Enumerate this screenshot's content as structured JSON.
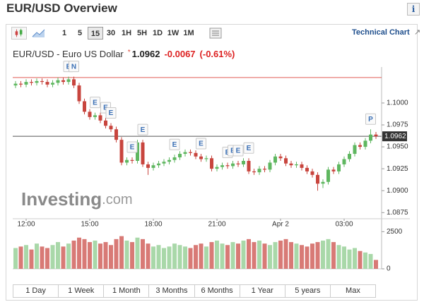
{
  "header": {
    "title": "EUR/USD Overview"
  },
  "toolbar": {
    "intervals": [
      {
        "label": "1",
        "active": false
      },
      {
        "label": "5",
        "active": false
      },
      {
        "label": "15",
        "active": true
      },
      {
        "label": "30",
        "active": false
      },
      {
        "label": "1H",
        "active": false
      },
      {
        "label": "5H",
        "active": false
      },
      {
        "label": "1D",
        "active": false
      },
      {
        "label": "1W",
        "active": false
      },
      {
        "label": "1M",
        "active": false
      }
    ],
    "link": "Technical Chart"
  },
  "quote": {
    "name": "EUR/USD - Euro US Dollar",
    "marker": "*",
    "change": "-0.0067",
    "change_pct": "(-0.61%)"
  },
  "watermark": {
    "brand": "Investing",
    "suffix": ".com"
  },
  "chart_data": {
    "type": "candlestick",
    "categories": [
      null,
      null,
      "12:00",
      null,
      null,
      null,
      null,
      null,
      null,
      null,
      null,
      null,
      null,
      null,
      "15:00",
      null,
      null,
      null,
      null,
      null,
      null,
      null,
      null,
      null,
      null,
      null,
      "18:00",
      null,
      null,
      null,
      null,
      null,
      null,
      null,
      null,
      null,
      null,
      null,
      "21:00",
      null,
      null,
      null,
      null,
      null,
      null,
      null,
      null,
      null,
      null,
      null,
      "Apr 2",
      null,
      null,
      null,
      null,
      null,
      null,
      null,
      null,
      null,
      null,
      null,
      "03:00",
      null,
      null,
      null,
      null,
      null,
      null
    ],
    "open": [
      1.102,
      1.1022,
      1.1021,
      1.1024,
      1.1023,
      1.1025,
      1.1024,
      1.1021,
      1.1023,
      1.1026,
      1.1024,
      1.1027,
      1.102,
      1.1002,
      1.099,
      1.0984,
      1.0986,
      1.098,
      1.0974,
      1.097,
      1.0958,
      1.0932,
      1.0935,
      1.0934,
      1.0955,
      1.093,
      1.0926,
      1.0929,
      1.0931,
      1.0933,
      1.0935,
      1.0938,
      1.0942,
      1.0944,
      1.0943,
      1.0939,
      1.0936,
      1.0937,
      1.0925,
      1.0927,
      1.0929,
      1.0928,
      1.0931,
      1.093,
      1.0934,
      1.0922,
      1.0921,
      1.0925,
      1.0924,
      1.0932,
      1.0939,
      1.0937,
      1.0931,
      1.0929,
      1.093,
      1.0926,
      1.0922,
      1.0918,
      1.0908,
      1.091,
      1.0924,
      1.0922,
      1.093,
      1.0936,
      1.0942,
      1.0952,
      1.095,
      1.0957,
      1.0964
    ],
    "high": [
      1.1025,
      1.1025,
      1.1027,
      1.1027,
      1.1028,
      1.1028,
      1.1027,
      1.1026,
      1.1029,
      1.1029,
      1.103,
      1.103,
      1.1023,
      1.1005,
      1.0993,
      1.0989,
      1.0989,
      1.0983,
      1.0977,
      1.0973,
      1.0961,
      1.0938,
      1.0938,
      1.0958,
      1.0958,
      1.0933,
      1.0932,
      1.0934,
      1.0936,
      1.0938,
      1.0941,
      1.0945,
      1.0947,
      1.0947,
      1.0946,
      1.0942,
      1.094,
      1.094,
      1.093,
      1.0932,
      1.0932,
      1.0934,
      1.0934,
      1.0937,
      1.0937,
      1.0925,
      1.0928,
      1.0928,
      1.0935,
      1.0942,
      1.0942,
      1.094,
      1.0934,
      1.0933,
      1.0933,
      1.0929,
      1.0925,
      1.0921,
      1.0913,
      1.0927,
      1.0927,
      1.0933,
      1.0939,
      1.0945,
      1.0955,
      1.0955,
      1.096,
      1.097,
      1.0967
    ],
    "low": [
      1.1017,
      1.1018,
      1.1018,
      1.102,
      1.102,
      1.1021,
      1.1018,
      1.1018,
      1.102,
      1.1021,
      1.1021,
      1.1017,
      1.0999,
      1.0987,
      1.0981,
      1.0981,
      1.0977,
      1.0971,
      1.0967,
      1.0955,
      1.0929,
      1.0929,
      1.0931,
      1.0931,
      1.0927,
      1.0918,
      1.0923,
      1.0926,
      1.0928,
      1.093,
      1.0932,
      1.0935,
      1.0939,
      1.094,
      1.0936,
      1.0933,
      1.0933,
      1.0922,
      1.0922,
      1.0924,
      1.0925,
      1.0925,
      1.0927,
      1.0927,
      1.0919,
      1.0918,
      1.0918,
      1.0921,
      1.0921,
      1.0929,
      1.0934,
      1.0928,
      1.0926,
      1.0926,
      1.0923,
      1.0919,
      1.0915,
      1.09,
      1.0903,
      1.0907,
      1.0919,
      1.0919,
      1.0927,
      1.0933,
      1.0939,
      1.0947,
      1.0947,
      1.0954,
      1.0959
    ],
    "close": [
      1.1022,
      1.1021,
      1.1024,
      1.1023,
      1.1025,
      1.1024,
      1.1021,
      1.1023,
      1.1026,
      1.1024,
      1.1027,
      1.102,
      1.1002,
      1.099,
      1.0984,
      1.0986,
      1.098,
      1.0974,
      1.097,
      1.0958,
      1.0932,
      1.0935,
      1.0934,
      1.0955,
      1.093,
      1.0926,
      1.0929,
      1.0931,
      1.0933,
      1.0935,
      1.0938,
      1.0942,
      1.0944,
      1.0943,
      1.0939,
      1.0936,
      1.0937,
      1.0925,
      1.0927,
      1.0929,
      1.0928,
      1.0931,
      1.093,
      1.0934,
      1.0922,
      1.0921,
      1.0925,
      1.0924,
      1.0932,
      1.0939,
      1.0937,
      1.0931,
      1.0929,
      1.093,
      1.0926,
      1.0922,
      1.0918,
      1.0908,
      1.091,
      1.0924,
      1.0922,
      1.093,
      1.0936,
      1.0942,
      1.0952,
      1.095,
      1.0957,
      1.0964,
      1.0962
    ],
    "volume": [
      1400,
      1500,
      1600,
      1300,
      1700,
      1500,
      1400,
      1600,
      1800,
      1500,
      1700,
      1900,
      2100,
      2000,
      1800,
      1900,
      1700,
      1800,
      1600,
      2000,
      2200,
      1900,
      1800,
      2100,
      2000,
      1700,
      1500,
      1600,
      1400,
      1500,
      1700,
      1600,
      1500,
      1400,
      1600,
      1700,
      1500,
      1800,
      1900,
      1700,
      1600,
      1800,
      1700,
      1900,
      2000,
      1800,
      1900,
      1700,
      1600,
      1800,
      1900,
      2000,
      1800,
      1700,
      1600,
      1500,
      1700,
      1800,
      1900,
      2000,
      1800,
      1600,
      1500,
      1300,
      1400,
      1200,
      1100,
      1000,
      600
    ],
    "last": 1.0962,
    "prev_close": 1.1029,
    "ylim": [
      1.0868,
      1.1041
    ],
    "yticks": [
      {
        "value": 1.1,
        "label": "1.1000"
      },
      {
        "value": 1.0975,
        "label": "1.0975"
      },
      {
        "value": 1.095,
        "label": "1.0950"
      },
      {
        "value": 1.0925,
        "label": "1.0925"
      },
      {
        "value": 1.09,
        "label": "1.0900"
      },
      {
        "value": 1.0875,
        "label": "1.0875"
      }
    ],
    "volume_ylim": [
      0,
      2800
    ],
    "volume_yticks": [
      2500,
      0
    ],
    "up_color": "#5fb760",
    "down_color": "#c8453e",
    "volume_up_color": "#a9d8a9",
    "volume_down_color": "#d87a76",
    "last_line_color": "#555555",
    "prev_close_color": "#e05a55",
    "events": [
      {
        "label": "E",
        "index": 10
      },
      {
        "label": "N",
        "index": 11
      },
      {
        "label": "E",
        "index": 15
      },
      {
        "label": "E",
        "index": 17
      },
      {
        "label": "E",
        "index": 18
      },
      {
        "label": "E",
        "index": 22
      },
      {
        "label": "E",
        "index": 24
      },
      {
        "label": "E",
        "index": 30
      },
      {
        "label": "E",
        "index": 35
      },
      {
        "label": "E",
        "index": 40
      },
      {
        "label": "E",
        "index": 41
      },
      {
        "label": "E",
        "index": 42
      },
      {
        "label": "E",
        "index": 44
      },
      {
        "label": "P",
        "index": 67
      }
    ]
  },
  "ranges": [
    "1 Day",
    "1 Week",
    "1 Month",
    "3 Months",
    "6 Months",
    "1 Year",
    "5 years",
    "Max"
  ]
}
